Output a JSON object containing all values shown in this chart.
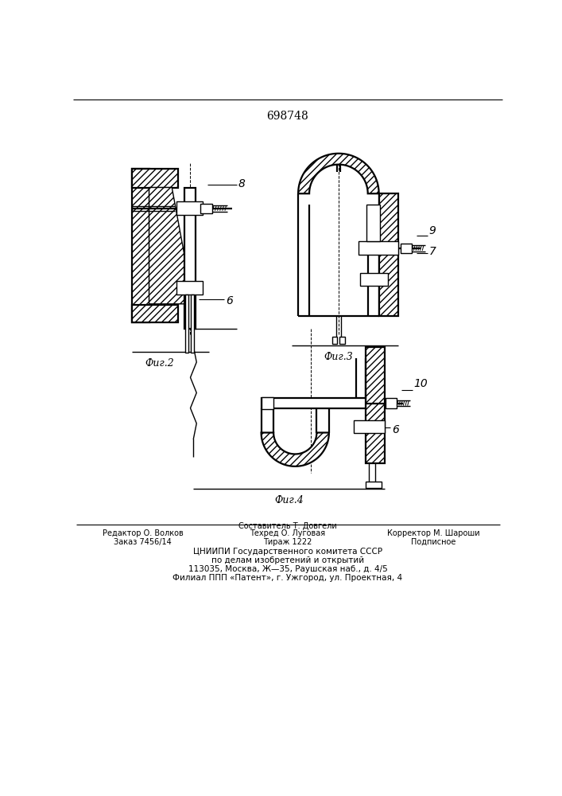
{
  "patent_number": "698748",
  "bg": "#ffffff",
  "lc": "#000000",
  "fig2_label": "Фиг.2",
  "fig3_label": "Фиг.3",
  "fig4_label": "Фиг.4",
  "footer_col1_line1": "Редактор О. Волков",
  "footer_col1_line2": "Заказ 7456/14",
  "footer_col2_line0": "Составитель Т. Довгели",
  "footer_col2_line1": "Техред О. Луговая",
  "footer_col2_line2": "Тираж 1222",
  "footer_col3_line1": "Корректор М. Шароши",
  "footer_col3_line2": "Подписное",
  "footer_cniipи": "ЦНИИПИ Государственного комитета СССР",
  "footer_po": "по делам изобретений и открытий",
  "footer_addr1": "113035, Москва, Ж—35, Раушская наб., д. 4/5",
  "footer_addr2": "Филиал ППП «Патент», г. Ужгород, ул. Проектная, 4"
}
